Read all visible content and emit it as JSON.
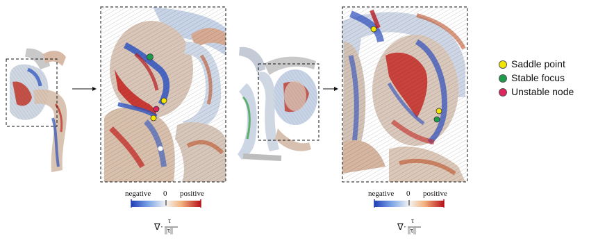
{
  "colorbars": [
    {
      "negative": "negative",
      "zero": "0",
      "positive": "positive",
      "formula": {
        "nabla": "∇·",
        "num": "τ",
        "den": "||τ||"
      }
    },
    {
      "negative": "negative",
      "zero": "0",
      "positive": "positive",
      "formula": {
        "nabla": "∇·",
        "num": "τ",
        "den": "||τ||"
      }
    }
  ],
  "legend": [
    {
      "label": "Saddle point",
      "color": "#f2e600"
    },
    {
      "label": "Stable focus",
      "color": "#1e9c4a"
    },
    {
      "label": "Unstable node",
      "color": "#e0245e"
    }
  ],
  "colors": {
    "negative": "#1f3fb5",
    "neutral": "#f2f2f2",
    "positive": "#b8121a"
  }
}
